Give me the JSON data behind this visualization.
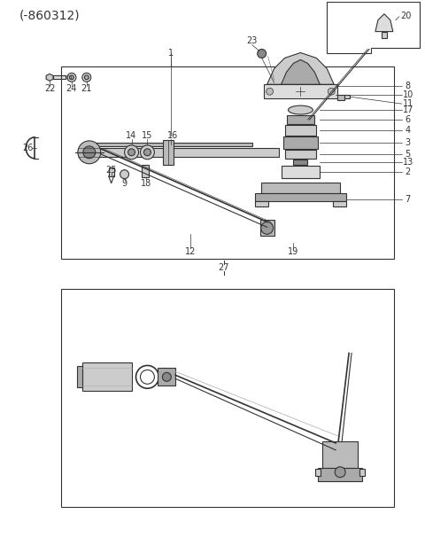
{
  "title": "(-860312)",
  "bg_color": "#ffffff",
  "line_color": "#333333",
  "title_fontsize": 10,
  "label_fontsize": 7,
  "fig_width": 4.8,
  "fig_height": 6.24,
  "dpi": 100
}
